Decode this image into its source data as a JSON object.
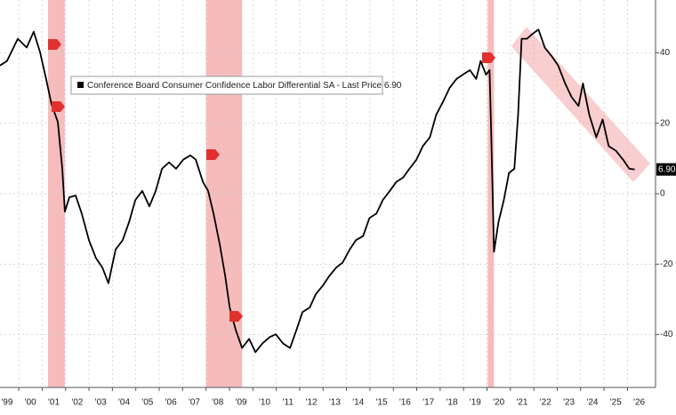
{
  "chart_data": {
    "type": "line",
    "x": [
      1999.2,
      1999.5,
      1999.96,
      2000.34,
      2000.64,
      2000.91,
      2001.17,
      2001.4,
      2001.67,
      2001.86,
      2001.97,
      2002.16,
      2002.43,
      2002.69,
      2003.0,
      2003.3,
      2003.57,
      2003.83,
      2004.14,
      2004.44,
      2004.71,
      2004.98,
      2005.28,
      2005.58,
      2005.85,
      2006.12,
      2006.42,
      2006.72,
      2007.03,
      2007.33,
      2007.56,
      2007.87,
      2008.09,
      2008.32,
      2008.59,
      2008.82,
      2009.01,
      2009.27,
      2009.54,
      2009.84,
      2010.11,
      2010.41,
      2010.72,
      2010.98,
      2011.29,
      2011.59,
      2011.86,
      2012.12,
      2012.43,
      2012.69,
      2013.0,
      2013.26,
      2013.57,
      2013.83,
      2014.14,
      2014.4,
      2014.71,
      2014.98,
      2015.28,
      2015.55,
      2015.85,
      2016.12,
      2016.42,
      2016.69,
      2016.99,
      2017.26,
      2017.56,
      2017.83,
      2018.13,
      2018.4,
      2018.7,
      2018.97,
      2019.27,
      2019.54,
      2019.73,
      2019.96,
      2020.11,
      2020.18,
      2020.3,
      2020.49,
      2020.72,
      2020.94,
      2021.17,
      2021.33,
      2021.48,
      2021.71,
      2021.93,
      2022.2,
      2022.47,
      2022.77,
      2023.04,
      2023.34,
      2023.61,
      2023.91,
      2024.1,
      2024.37,
      2024.67,
      2024.94,
      2025.2,
      2025.51,
      2025.81,
      2026.08,
      2026.31
    ],
    "series": [
      {
        "name": "Conference Board Consumer Confidence Labor Differential SA - Last Price 6.90",
        "color": "#000000",
        "values": [
          36.4,
          37.7,
          44,
          41.5,
          46,
          40.2,
          32.6,
          25.4,
          20.4,
          7.1,
          -5.1,
          -1,
          -0.5,
          -5.6,
          -13.2,
          -18.3,
          -20.9,
          -25.4,
          -15.8,
          -13.2,
          -8.1,
          -1.8,
          0.8,
          -3.6,
          0.8,
          7.1,
          8.9,
          7.1,
          9.7,
          10.9,
          9.7,
          3.3,
          0.8,
          -5.6,
          -14.5,
          -23.4,
          -32.3,
          -38.7,
          -43.8,
          -41.2,
          -45,
          -42.5,
          -40.7,
          -39.9,
          -42.5,
          -43.8,
          -38.7,
          -33.6,
          -32.3,
          -28.5,
          -26,
          -23.4,
          -20.9,
          -19.6,
          -15.8,
          -13.2,
          -12,
          -6.9,
          -5.6,
          -1.8,
          0.8,
          3.3,
          4.6,
          7.1,
          9.7,
          13.5,
          16,
          22.4,
          26.2,
          30,
          32.6,
          33.8,
          35.1,
          32.6,
          37.7,
          33.8,
          35.1,
          17.3,
          -16.5,
          -8.1,
          -1.8,
          5.9,
          7.1,
          22.4,
          44,
          44,
          45.3,
          46.6,
          41.5,
          39,
          36.4,
          31.3,
          27.5,
          24.9,
          31.3,
          22.4,
          16,
          21.1,
          13.5,
          12.2,
          9.7,
          7.1,
          6.9
        ]
      }
    ],
    "xlim": [
      1999.2,
      2027.2
    ],
    "ylim": [
      -55,
      55
    ],
    "xticks": [
      {
        "value": 1999.5,
        "label": "'99"
      },
      {
        "value": 2000.5,
        "label": "'00"
      },
      {
        "value": 2001.5,
        "label": "'01"
      },
      {
        "value": 2002.5,
        "label": "'02"
      },
      {
        "value": 2003.5,
        "label": "'03"
      },
      {
        "value": 2004.5,
        "label": "'04"
      },
      {
        "value": 2005.5,
        "label": "'05"
      },
      {
        "value": 2006.5,
        "label": "'06"
      },
      {
        "value": 2007.5,
        "label": "'07"
      },
      {
        "value": 2008.5,
        "label": "'08"
      },
      {
        "value": 2009.5,
        "label": "'09"
      },
      {
        "value": 2010.5,
        "label": "'10"
      },
      {
        "value": 2011.5,
        "label": "'11"
      },
      {
        "value": 2012.5,
        "label": "'12"
      },
      {
        "value": 2013.5,
        "label": "'13"
      },
      {
        "value": 2014.5,
        "label": "'14"
      },
      {
        "value": 2015.5,
        "label": "'15"
      },
      {
        "value": 2016.5,
        "label": "'16"
      },
      {
        "value": 2017.5,
        "label": "'17"
      },
      {
        "value": 2018.5,
        "label": "'18"
      },
      {
        "value": 2019.5,
        "label": "'19"
      },
      {
        "value": 2020.5,
        "label": "'20"
      },
      {
        "value": 2021.5,
        "label": "'21"
      },
      {
        "value": 2022.5,
        "label": "'22"
      },
      {
        "value": 2023.5,
        "label": "'23"
      },
      {
        "value": 2024.5,
        "label": "'24"
      },
      {
        "value": 2025.5,
        "label": "'25"
      },
      {
        "value": 2026.5,
        "label": "'26"
      }
    ],
    "yticks": [
      -40,
      -20,
      0,
      20,
      40
    ],
    "grid": true,
    "shaded_ranges": [
      [
        2001.25,
        2001.97
      ],
      [
        2008.0,
        2009.54
      ],
      [
        2020.03,
        2020.3
      ]
    ],
    "shade_color": "#f3a5a5",
    "last_price": {
      "value": 6.9,
      "label": "6.90"
    }
  }
}
